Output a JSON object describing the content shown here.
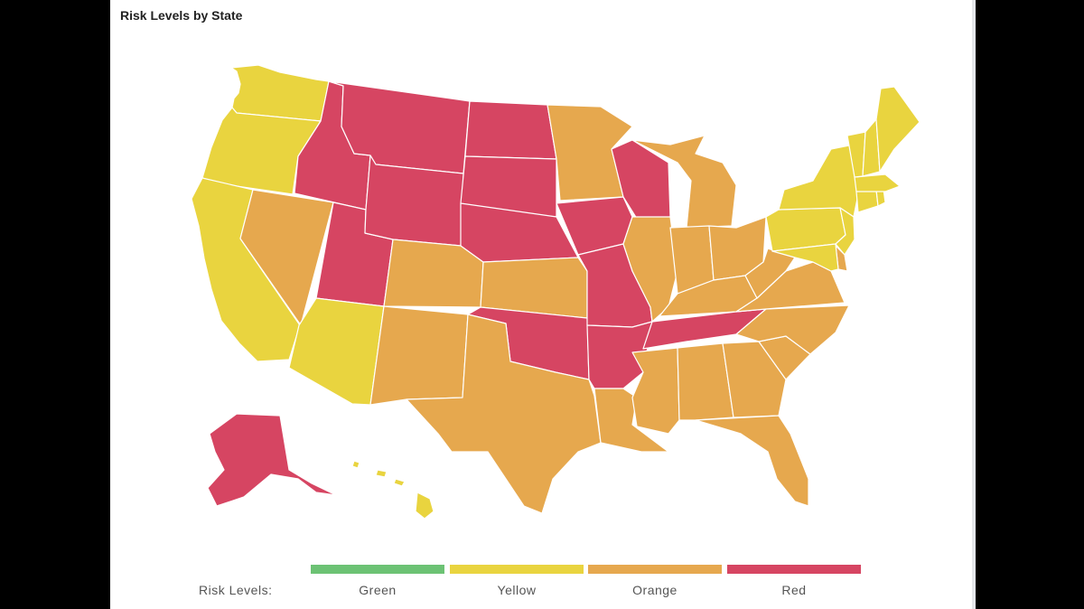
{
  "title": "Risk Levels by State",
  "colors": {
    "Green": "#6cc274",
    "Yellow": "#e9d43f",
    "Orange": "#e6a84e",
    "Red": "#d64562"
  },
  "legend": {
    "label": "Risk Levels:",
    "items": [
      {
        "name": "Green",
        "color": "#6cc274"
      },
      {
        "name": "Yellow",
        "color": "#e9d43f"
      },
      {
        "name": "Orange",
        "color": "#e6a84e"
      },
      {
        "name": "Red",
        "color": "#d64562"
      }
    ]
  },
  "states": {
    "WA": "Yellow",
    "OR": "Yellow",
    "CA": "Yellow",
    "ID": "Red",
    "NV": "Orange",
    "UT": "Red",
    "AZ": "Yellow",
    "MT": "Red",
    "WY": "Red",
    "CO": "Orange",
    "NM": "Orange",
    "ND": "Red",
    "SD": "Red",
    "NE": "Red",
    "KS": "Orange",
    "OK": "Red",
    "TX": "Orange",
    "MN": "Orange",
    "IA": "Red",
    "MO": "Red",
    "AR": "Red",
    "LA": "Orange",
    "WI": "Red",
    "IL": "Orange",
    "MI": "Orange",
    "IN": "Orange",
    "OH": "Orange",
    "KY": "Orange",
    "TN": "Red",
    "MS": "Orange",
    "AL": "Orange",
    "GA": "Orange",
    "FL": "Orange",
    "SC": "Orange",
    "NC": "Orange",
    "VA": "Orange",
    "WV": "Orange",
    "PA": "Yellow",
    "NY": "Yellow",
    "NJ": "Yellow",
    "DE": "Orange",
    "MD": "Yellow",
    "CT": "Yellow",
    "RI": "Yellow",
    "MA": "Yellow",
    "VT": "Yellow",
    "NH": "Yellow",
    "ME": "Yellow",
    "AK": "Red",
    "HI": "Yellow"
  }
}
